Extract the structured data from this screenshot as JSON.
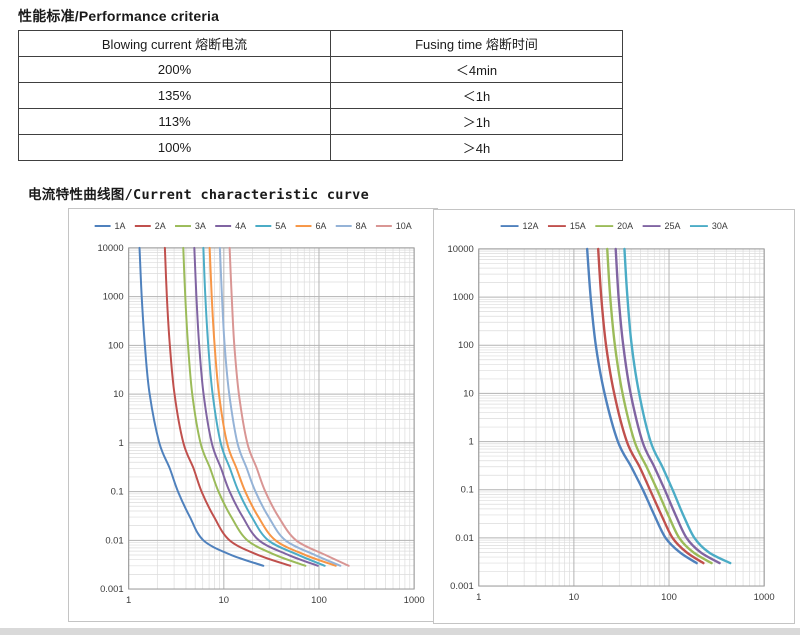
{
  "performance": {
    "title": "性能标准/Performance criteria",
    "table": {
      "headers": [
        "Blowing current 熔断电流",
        "Fusing time 熔断时间"
      ],
      "rows": [
        {
          "current": "200%",
          "time": "＜4min"
        },
        {
          "current": "135%",
          "time": "＜1h"
        },
        {
          "current": "113%",
          "time": "＞1h"
        },
        {
          "current": "100%",
          "time": "＞4h"
        }
      ]
    }
  },
  "curves": {
    "title": "电流特性曲线图/Current characteristic curve"
  },
  "chart_data": [
    {
      "type": "line",
      "name": "current-characteristic-curve-1A-10A",
      "title": "",
      "xlabel": "",
      "ylabel": "",
      "x_scale": "log",
      "y_scale": "log",
      "x_range": [
        1,
        1000
      ],
      "y_range": [
        0.001,
        10000
      ],
      "x_tick_labels": [
        "1",
        "10",
        "100",
        "1000"
      ],
      "y_tick_labels": [
        "10000",
        "1000",
        "100",
        "10",
        "1",
        "0.1",
        "0.01",
        "0.001"
      ],
      "grid": "major+minor log",
      "legend_position": "top",
      "times_s": [
        10000,
        1000,
        100,
        10,
        1,
        0.3,
        0.1,
        0.03,
        0.01,
        0.005,
        0.003
      ],
      "series": [
        {
          "name": "1A",
          "color": "#4F81BD",
          "currents_A": [
            1.3,
            1.37,
            1.48,
            1.66,
            2.1,
            2.7,
            3.3,
            4.4,
            6.1,
            12.0,
            26.0
          ]
        },
        {
          "name": "2A",
          "color": "#C0504D",
          "currents_A": [
            2.4,
            2.52,
            2.71,
            3.03,
            3.76,
            4.8,
            5.84,
            7.9,
            11.5,
            23.0,
            50.0
          ]
        },
        {
          "name": "3A",
          "color": "#9BBB59",
          "currents_A": [
            3.75,
            3.93,
            4.21,
            4.66,
            5.68,
            7.18,
            8.78,
            12.0,
            17.7,
            35.0,
            72.0
          ]
        },
        {
          "name": "4A",
          "color": "#8064A2",
          "currents_A": [
            4.9,
            5.15,
            5.51,
            6.13,
            7.46,
            9.36,
            11.5,
            15.8,
            23.4,
            48.0,
            97.0
          ]
        },
        {
          "name": "5A",
          "color": "#4BACC6",
          "currents_A": [
            6.1,
            6.39,
            6.86,
            7.62,
            9.27,
            11.6,
            14.3,
            19.7,
            29.3,
            61.0,
            115
          ]
        },
        {
          "name": "6A",
          "color": "#F79646",
          "currents_A": [
            7.1,
            7.46,
            8.0,
            8.9,
            10.8,
            13.6,
            16.8,
            23.1,
            34.9,
            72.0,
            150
          ]
        },
        {
          "name": "8A",
          "color": "#95B3D7",
          "currents_A": [
            9.1,
            9.56,
            10.2,
            11.4,
            13.9,
            17.4,
            21.5,
            29.6,
            44.4,
            91.0,
            168
          ]
        },
        {
          "name": "10A",
          "color": "#D99694",
          "currents_A": [
            11.5,
            12.1,
            12.9,
            14.4,
            17.6,
            22.2,
            27.3,
            37.7,
            57.5,
            117,
            205
          ]
        }
      ]
    },
    {
      "type": "line",
      "name": "current-characteristic-curve-12A-30A",
      "title": "",
      "xlabel": "",
      "ylabel": "",
      "x_scale": "log",
      "y_scale": "log",
      "x_range": [
        1,
        1000
      ],
      "y_range": [
        0.001,
        10000
      ],
      "x_tick_labels": [
        "1",
        "10",
        "100",
        "1000"
      ],
      "y_tick_labels": [
        "10000",
        "1000",
        "100",
        "10",
        "1",
        "0.1",
        "0.01",
        "0.001"
      ],
      "grid": "major+minor log",
      "legend_position": "top",
      "times_s": [
        10000,
        1000,
        100,
        10,
        1,
        0.3,
        0.1,
        0.03,
        0.01,
        0.005,
        0.003
      ],
      "series": [
        {
          "name": "12A",
          "color": "#4F81BD",
          "currents_A": [
            13.8,
            15.0,
            17.0,
            21.0,
            29.0,
            40.0,
            53.0,
            70.0,
            92.0,
            130,
            195
          ]
        },
        {
          "name": "15A",
          "color": "#C0504D",
          "currents_A": [
            18.0,
            19.4,
            21.8,
            26.5,
            36.0,
            49.0,
            63.0,
            83.0,
            109,
            153,
            230
          ]
        },
        {
          "name": "20A",
          "color": "#9BBB59",
          "currents_A": [
            22.4,
            24.1,
            27.0,
            32.5,
            43.5,
            58.0,
            75.0,
            98.0,
            128,
            180,
            280
          ]
        },
        {
          "name": "25A",
          "color": "#8064A2",
          "currents_A": [
            27.5,
            29.5,
            33.0,
            39.5,
            52.5,
            70.0,
            90.0,
            117,
            153,
            215,
            340
          ]
        },
        {
          "name": "30A",
          "color": "#4BACC6",
          "currents_A": [
            34.0,
            36.5,
            40.5,
            48.5,
            64.0,
            85.0,
            109,
            141,
            185,
            262,
            440
          ]
        }
      ]
    }
  ]
}
